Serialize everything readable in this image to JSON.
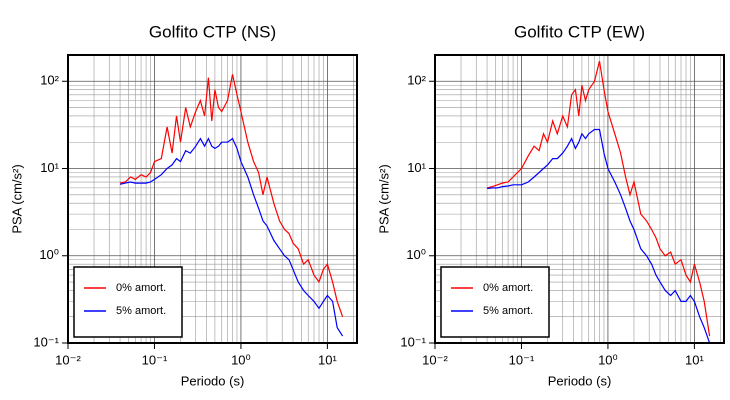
{
  "chart_data": [
    {
      "type": "line",
      "title": "Golfito CTP (NS)",
      "x_label": "Periodo (s)",
      "y_label": "PSA (cm/s²)",
      "x_log": true,
      "y_log": true,
      "grid": true,
      "legend": "lower left",
      "xlim": [
        0.01,
        22
      ],
      "ylim": [
        0.1,
        200
      ],
      "xticks": [
        {
          "value": 0.01,
          "label": "10⁻²"
        },
        {
          "value": 0.1,
          "label": "10⁻¹"
        },
        {
          "value": 1,
          "label": "10⁰"
        },
        {
          "value": 10,
          "label": "10¹"
        }
      ],
      "yticks": [
        {
          "value": 0.1,
          "label": "10⁻¹"
        },
        {
          "value": 1,
          "label": "10⁰"
        },
        {
          "value": 10,
          "label": "10¹"
        },
        {
          "value": 100,
          "label": "10²"
        }
      ],
      "xminorticks": [
        0.02,
        0.03,
        0.04,
        0.05,
        0.06,
        0.07,
        0.08,
        0.09,
        0.2,
        0.3,
        0.4,
        0.5,
        0.6,
        0.7,
        0.8,
        0.9,
        2,
        3,
        4,
        5,
        6,
        7,
        8,
        9,
        20
      ],
      "yminorticks": [
        0.2,
        0.3,
        0.4,
        0.5,
        0.6,
        0.7,
        0.8,
        0.9,
        2,
        3,
        4,
        5,
        6,
        7,
        8,
        9,
        20,
        30,
        40,
        50,
        60,
        70,
        80,
        90,
        200
      ],
      "x": [
        0.04,
        0.046,
        0.053,
        0.06,
        0.07,
        0.08,
        0.09,
        0.1,
        0.12,
        0.14,
        0.16,
        0.18,
        0.2,
        0.23,
        0.26,
        0.3,
        0.34,
        0.38,
        0.42,
        0.46,
        0.5,
        0.55,
        0.6,
        0.7,
        0.8,
        0.9,
        1.0,
        1.2,
        1.4,
        1.6,
        1.8,
        2.0,
        2.4,
        2.8,
        3.2,
        3.6,
        4.0,
        4.6,
        5.3,
        6.0,
        7.0,
        8.0,
        9.0,
        10,
        11.5,
        13,
        15
      ],
      "series": [
        {
          "name": "0% amort.",
          "color": "#ff0000",
          "values": [
            6.8,
            7,
            8,
            7.5,
            8.5,
            8,
            9,
            12,
            13,
            30,
            15,
            40,
            20,
            50,
            30,
            45,
            60,
            40,
            110,
            35,
            80,
            50,
            45,
            60,
            120,
            70,
            45,
            20,
            12,
            9,
            5,
            8,
            4,
            2.5,
            2,
            1.8,
            1.4,
            1.2,
            0.8,
            0.9,
            0.6,
            0.5,
            0.7,
            0.8,
            0.5,
            0.3,
            0.2
          ]
        },
        {
          "name": "5% amort.",
          "color": "#0000ff",
          "values": [
            6.6,
            6.8,
            7,
            6.8,
            6.8,
            6.8,
            7,
            7.5,
            8.5,
            10,
            11,
            13,
            12,
            16,
            15,
            18,
            22,
            18,
            22,
            18,
            17,
            18,
            20,
            20,
            22,
            17,
            12,
            8,
            5,
            3.5,
            2.5,
            2.2,
            1.5,
            1.2,
            1,
            0.9,
            0.7,
            0.5,
            0.4,
            0.35,
            0.3,
            0.25,
            0.3,
            0.35,
            0.3,
            0.15,
            0.12
          ]
        }
      ]
    },
    {
      "type": "line",
      "title": "Golfito CTP (EW)",
      "x_label": "Periodo (s)",
      "y_label": "PSA (cm/s²)",
      "x_log": true,
      "y_log": true,
      "grid": true,
      "legend": "lower left",
      "xlim": [
        0.01,
        22
      ],
      "ylim": [
        0.1,
        200
      ],
      "xticks": [
        {
          "value": 0.01,
          "label": "10⁻²"
        },
        {
          "value": 0.1,
          "label": "10⁻¹"
        },
        {
          "value": 1,
          "label": "10⁰"
        },
        {
          "value": 10,
          "label": "10¹"
        }
      ],
      "yticks": [
        {
          "value": 0.1,
          "label": "10⁻¹"
        },
        {
          "value": 1,
          "label": "10⁰"
        },
        {
          "value": 10,
          "label": "10¹"
        },
        {
          "value": 100,
          "label": "10²"
        }
      ],
      "xminorticks": [
        0.02,
        0.03,
        0.04,
        0.05,
        0.06,
        0.07,
        0.08,
        0.09,
        0.2,
        0.3,
        0.4,
        0.5,
        0.6,
        0.7,
        0.8,
        0.9,
        2,
        3,
        4,
        5,
        6,
        7,
        8,
        9,
        20
      ],
      "yminorticks": [
        0.2,
        0.3,
        0.4,
        0.5,
        0.6,
        0.7,
        0.8,
        0.9,
        2,
        3,
        4,
        5,
        6,
        7,
        8,
        9,
        20,
        30,
        40,
        50,
        60,
        70,
        80,
        90,
        200
      ],
      "x": [
        0.04,
        0.046,
        0.053,
        0.06,
        0.07,
        0.08,
        0.09,
        0.1,
        0.12,
        0.14,
        0.16,
        0.18,
        0.2,
        0.23,
        0.26,
        0.3,
        0.34,
        0.38,
        0.42,
        0.46,
        0.5,
        0.55,
        0.6,
        0.7,
        0.8,
        0.9,
        1.0,
        1.2,
        1.4,
        1.6,
        1.8,
        2.0,
        2.4,
        2.8,
        3.2,
        3.6,
        4.0,
        4.6,
        5.3,
        6.0,
        7.0,
        8.0,
        9.0,
        10,
        11.5,
        13,
        15
      ],
      "series": [
        {
          "name": "0% amort.",
          "color": "#ff0000",
          "values": [
            6,
            6.2,
            6.5,
            6.8,
            7,
            8,
            9,
            10,
            14,
            18,
            16,
            25,
            20,
            35,
            25,
            40,
            30,
            70,
            80,
            40,
            90,
            60,
            80,
            100,
            170,
            80,
            45,
            25,
            15,
            8,
            5,
            7,
            3,
            2.5,
            2,
            1.6,
            1.2,
            1,
            1.1,
            0.8,
            0.9,
            0.6,
            0.5,
            0.8,
            0.5,
            0.3,
            0.12
          ]
        },
        {
          "name": "5% amort.",
          "color": "#0000ff",
          "values": [
            5.9,
            6,
            6,
            6.2,
            6.3,
            6.5,
            6.5,
            6.5,
            7,
            8,
            9,
            10,
            11,
            13,
            13,
            15,
            18,
            22,
            17,
            20,
            25,
            22,
            25,
            28,
            28,
            15,
            10,
            7,
            5,
            3.5,
            2.5,
            2,
            1.2,
            1,
            0.8,
            0.6,
            0.5,
            0.4,
            0.35,
            0.4,
            0.3,
            0.3,
            0.35,
            0.3,
            0.2,
            0.15,
            0.1
          ]
        }
      ]
    }
  ]
}
